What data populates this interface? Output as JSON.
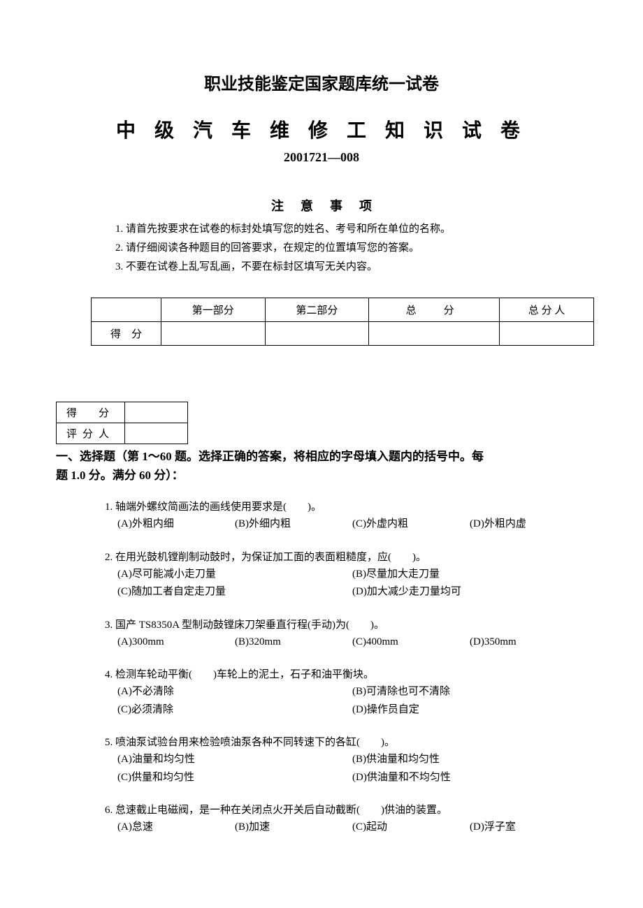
{
  "header1": "职业技能鉴定国家题库统一试卷",
  "header2": "中 级 汽 车 维 修 工 知 识 试 卷",
  "code": "2001721—008",
  "notice_title": "注意事项",
  "notices": [
    "1. 请首先按要求在试卷的标封处填写您的姓名、考号和所在单位的名称。",
    "2. 请仔细阅读各种题目的回答要求，在规定的位置填写您的答案。",
    "3. 不要在试卷上乱写乱画，不要在标封区填写无关内容。"
  ],
  "score_table1": {
    "headers": [
      "",
      "第一部分",
      "第二部分",
      "总　分",
      "总 分 人"
    ],
    "row_label": "得　分"
  },
  "score_table2": {
    "row1": "得　分",
    "row2": "评分人"
  },
  "section_title_line1": "一、选择题（第 1～60 题。选择正确的答案，将相应的字母填入题内的括号中。每",
  "section_title_line2": "题 1.0 分。满分 60 分）：",
  "questions": [
    {
      "num": "1.",
      "text": "轴端外螺纹简画法的画线使用要求是(　　)。",
      "layout": "four-col",
      "options": [
        "(A)外粗内细",
        "(B)外细内粗",
        "(C)外虚内粗",
        "(D)外粗内虚"
      ]
    },
    {
      "num": "2.",
      "text": "在用光鼓机镗削制动鼓时，为保证加工面的表面粗糙度，应(　　)。",
      "layout": "two-col",
      "options": [
        "(A)尽可能减小走刀量",
        "(B)尽量加大走刀量",
        "(C)随加工者自定走刀量",
        "(D)加大减少走刀量均可"
      ]
    },
    {
      "num": "3.",
      "text": "国产 TS8350A 型制动鼓镗床刀架垂直行程(手动)为(　　)。",
      "layout": "four-col",
      "options": [
        "(A)300mm",
        "(B)320mm",
        "(C)400mm",
        "(D)350mm"
      ]
    },
    {
      "num": "4.",
      "text": "检测车轮动平衡(　　)车轮上的泥土，石子和油平衡块。",
      "layout": "two-col",
      "options": [
        "(A)不必清除",
        "(B)可清除也可不清除",
        "(C)必须清除",
        "(D)操作员自定"
      ]
    },
    {
      "num": "5.",
      "text": "喷油泵试验台用来检验喷油泵各种不同转速下的各缸(　　)。",
      "layout": "two-col",
      "options": [
        "(A)油量和均匀性",
        "(B)供油量和均匀性",
        "(C)供量和均匀性",
        "(D)供油量和不均匀性"
      ]
    },
    {
      "num": "6.",
      "text": "怠速截止电磁阀，是一种在关闭点火开关后自动截断(　　)供油的装置。",
      "layout": "four-col",
      "options": [
        "(A)怠速",
        "(B)加速",
        "(C)起动",
        "(D)浮子室"
      ]
    }
  ]
}
